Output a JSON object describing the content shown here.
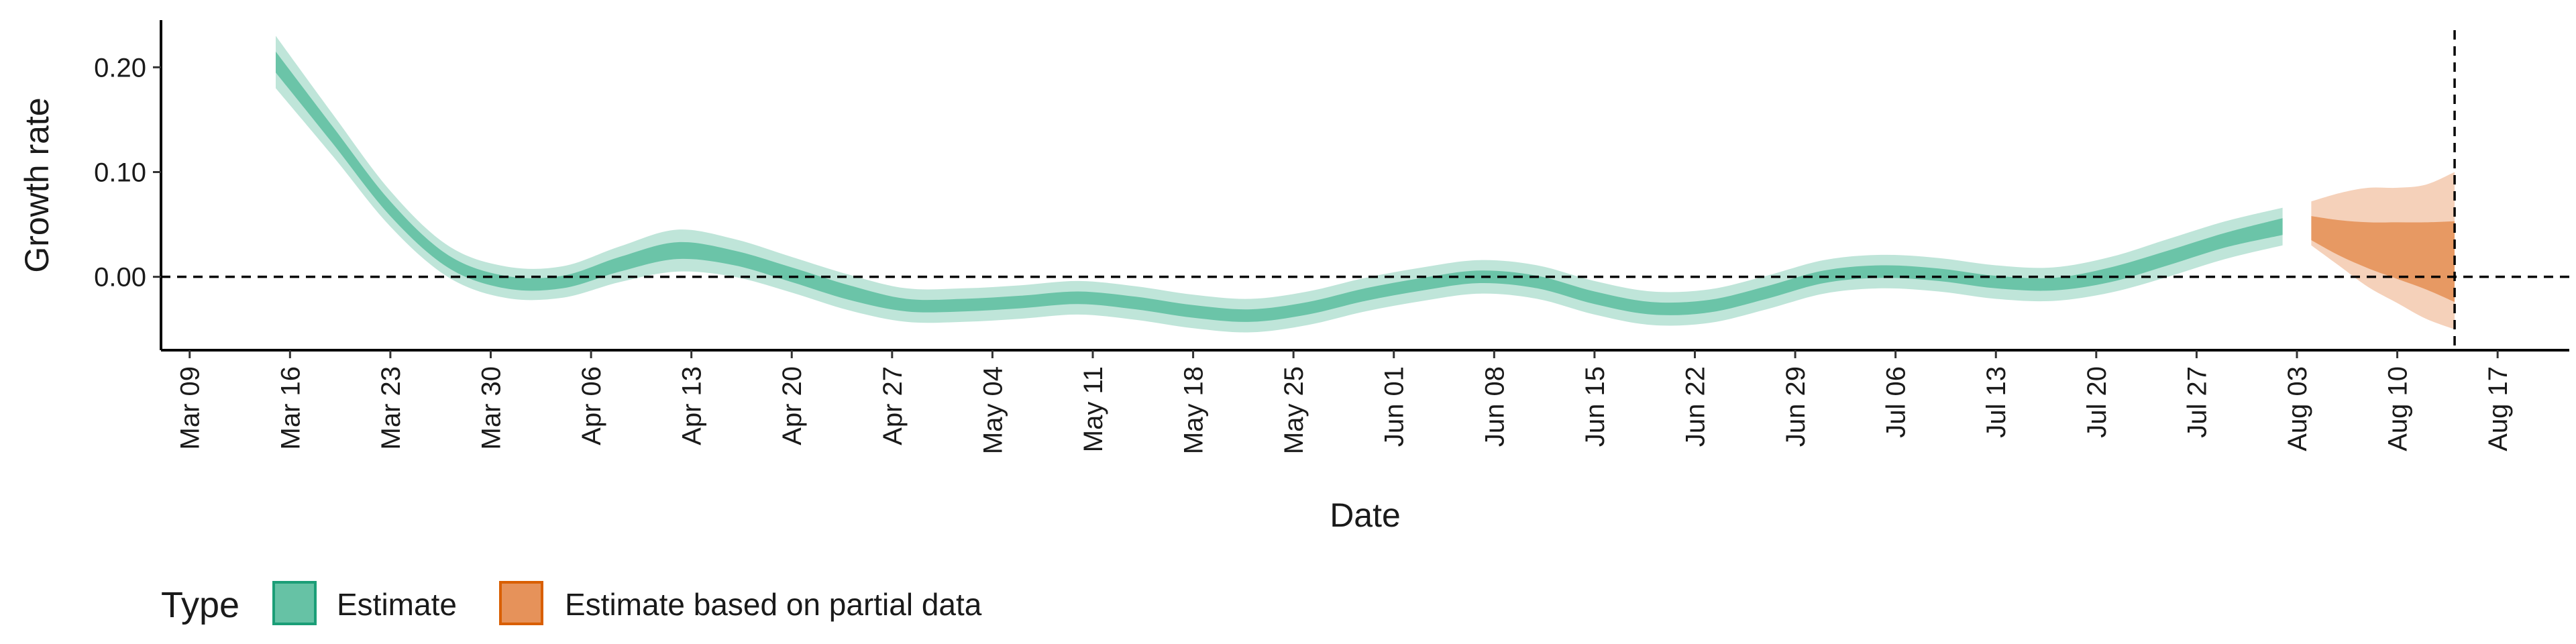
{
  "chart_data": {
    "type": "area",
    "title": "",
    "xlabel": "Date",
    "ylabel": "Growth rate",
    "x_ticks": [
      "Mar 09",
      "Mar 16",
      "Mar 23",
      "Mar 30",
      "Apr 06",
      "Apr 13",
      "Apr 20",
      "Apr 27",
      "May 04",
      "May 11",
      "May 18",
      "May 25",
      "Jun 01",
      "Jun 08",
      "Jun 15",
      "Jun 22",
      "Jun 29",
      "Jul 06",
      "Jul 13",
      "Jul 20",
      "Jul 27",
      "Aug 03",
      "Aug 10",
      "Aug 17"
    ],
    "y_ticks": [
      "0.00",
      "0.10",
      "0.20"
    ],
    "ylim": [
      -0.07,
      0.245
    ],
    "xlim": [
      "2020-03-07",
      "2020-08-22"
    ],
    "reference_lines": {
      "y": 0.0,
      "x": "2020-08-14"
    },
    "legend": {
      "title": "Type",
      "position": "bottom-left",
      "entries": [
        "Estimate",
        "Estimate based on partial data"
      ]
    },
    "colors": {
      "estimate": "#66c2a5",
      "partial": "#e6925a",
      "estimate_border": "#1b9e77",
      "partial_border": "#d95f02"
    },
    "series": [
      {
        "name": "Estimate",
        "x": [
          "2020-03-15",
          "2020-03-19",
          "2020-03-23",
          "2020-03-27",
          "2020-03-31",
          "2020-04-04",
          "2020-04-08",
          "2020-04-12",
          "2020-04-16",
          "2020-04-20",
          "2020-04-24",
          "2020-04-28",
          "2020-05-02",
          "2020-05-06",
          "2020-05-10",
          "2020-05-14",
          "2020-05-18",
          "2020-05-22",
          "2020-05-26",
          "2020-05-30",
          "2020-06-03",
          "2020-06-07",
          "2020-06-11",
          "2020-06-15",
          "2020-06-19",
          "2020-06-23",
          "2020-06-27",
          "2020-07-01",
          "2020-07-05",
          "2020-07-09",
          "2020-07-13",
          "2020-07-17",
          "2020-07-21",
          "2020-07-25",
          "2020-07-29",
          "2020-08-02"
        ],
        "median": [
          0.205,
          0.135,
          0.065,
          0.015,
          -0.005,
          -0.005,
          0.012,
          0.025,
          0.018,
          0.002,
          -0.015,
          -0.027,
          -0.027,
          -0.024,
          -0.02,
          -0.025,
          -0.033,
          -0.037,
          -0.03,
          -0.017,
          -0.007,
          0.0,
          -0.005,
          -0.02,
          -0.03,
          -0.028,
          -0.015,
          0.0,
          0.005,
          0.002,
          -0.005,
          -0.007,
          0.002,
          0.018,
          0.035,
          0.048
        ],
        "lower_50": [
          0.195,
          0.127,
          0.058,
          0.009,
          -0.011,
          -0.011,
          0.005,
          0.017,
          0.011,
          -0.005,
          -0.022,
          -0.033,
          -0.033,
          -0.03,
          -0.026,
          -0.031,
          -0.039,
          -0.043,
          -0.036,
          -0.023,
          -0.013,
          -0.006,
          -0.011,
          -0.026,
          -0.036,
          -0.034,
          -0.021,
          -0.006,
          -0.001,
          -0.004,
          -0.011,
          -0.013,
          -0.005,
          0.011,
          0.028,
          0.04
        ],
        "upper_50": [
          0.215,
          0.143,
          0.072,
          0.021,
          0.001,
          0.001,
          0.019,
          0.033,
          0.025,
          0.009,
          -0.008,
          -0.021,
          -0.021,
          -0.018,
          -0.014,
          -0.019,
          -0.027,
          -0.031,
          -0.024,
          -0.011,
          -0.001,
          0.006,
          0.001,
          -0.014,
          -0.024,
          -0.022,
          -0.009,
          0.006,
          0.011,
          0.008,
          0.001,
          -0.001,
          0.009,
          0.025,
          0.042,
          0.056
        ],
        "lower_90": [
          0.18,
          0.115,
          0.048,
          0.0,
          -0.02,
          -0.02,
          -0.005,
          0.005,
          0.0,
          -0.015,
          -0.032,
          -0.043,
          -0.043,
          -0.04,
          -0.036,
          -0.041,
          -0.049,
          -0.053,
          -0.046,
          -0.033,
          -0.023,
          -0.016,
          -0.021,
          -0.036,
          -0.046,
          -0.044,
          -0.031,
          -0.016,
          -0.011,
          -0.014,
          -0.021,
          -0.023,
          -0.015,
          0.0,
          0.017,
          0.03
        ],
        "upper_90": [
          0.23,
          0.155,
          0.082,
          0.03,
          0.01,
          0.01,
          0.029,
          0.045,
          0.036,
          0.019,
          0.002,
          -0.011,
          -0.011,
          -0.008,
          -0.004,
          -0.009,
          -0.017,
          -0.021,
          -0.014,
          -0.001,
          0.009,
          0.016,
          0.011,
          -0.004,
          -0.014,
          -0.012,
          0.001,
          0.016,
          0.021,
          0.018,
          0.011,
          0.009,
          0.019,
          0.036,
          0.053,
          0.066
        ]
      },
      {
        "name": "Estimate based on partial data",
        "x": [
          "2020-08-04",
          "2020-08-06",
          "2020-08-08",
          "2020-08-10",
          "2020-08-12",
          "2020-08-14"
        ],
        "median": [
          0.047,
          0.038,
          0.03,
          0.027,
          0.025,
          0.022
        ],
        "lower_50": [
          0.035,
          0.02,
          0.008,
          -0.002,
          -0.012,
          -0.024
        ],
        "upper_50": [
          0.058,
          0.054,
          0.052,
          0.052,
          0.052,
          0.053
        ],
        "lower_90": [
          0.03,
          0.01,
          -0.01,
          -0.025,
          -0.04,
          -0.05
        ],
        "upper_90": [
          0.072,
          0.08,
          0.085,
          0.085,
          0.088,
          0.1
        ]
      }
    ]
  }
}
